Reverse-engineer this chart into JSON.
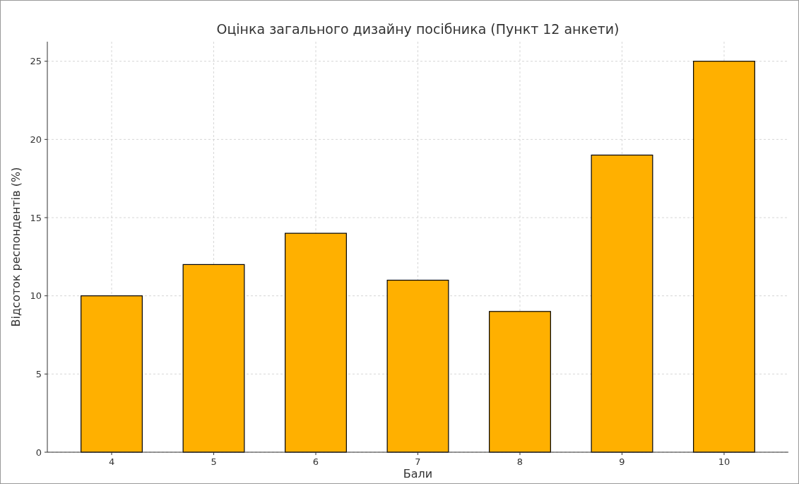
{
  "chart_data": {
    "type": "bar",
    "title": "Оцінка загального дизайну посібника (Пункт 12 анкети)",
    "xlabel": "Бали",
    "ylabel": "Відсоток респондентів (%)",
    "categories": [
      "4",
      "5",
      "6",
      "7",
      "8",
      "9",
      "10"
    ],
    "values": [
      10,
      12,
      14,
      11,
      9,
      19,
      25
    ],
    "color": "#ffb000",
    "ylim": [
      0,
      26.25
    ],
    "yticks": [
      0,
      5,
      10,
      15,
      20,
      25
    ],
    "grid": true
  }
}
